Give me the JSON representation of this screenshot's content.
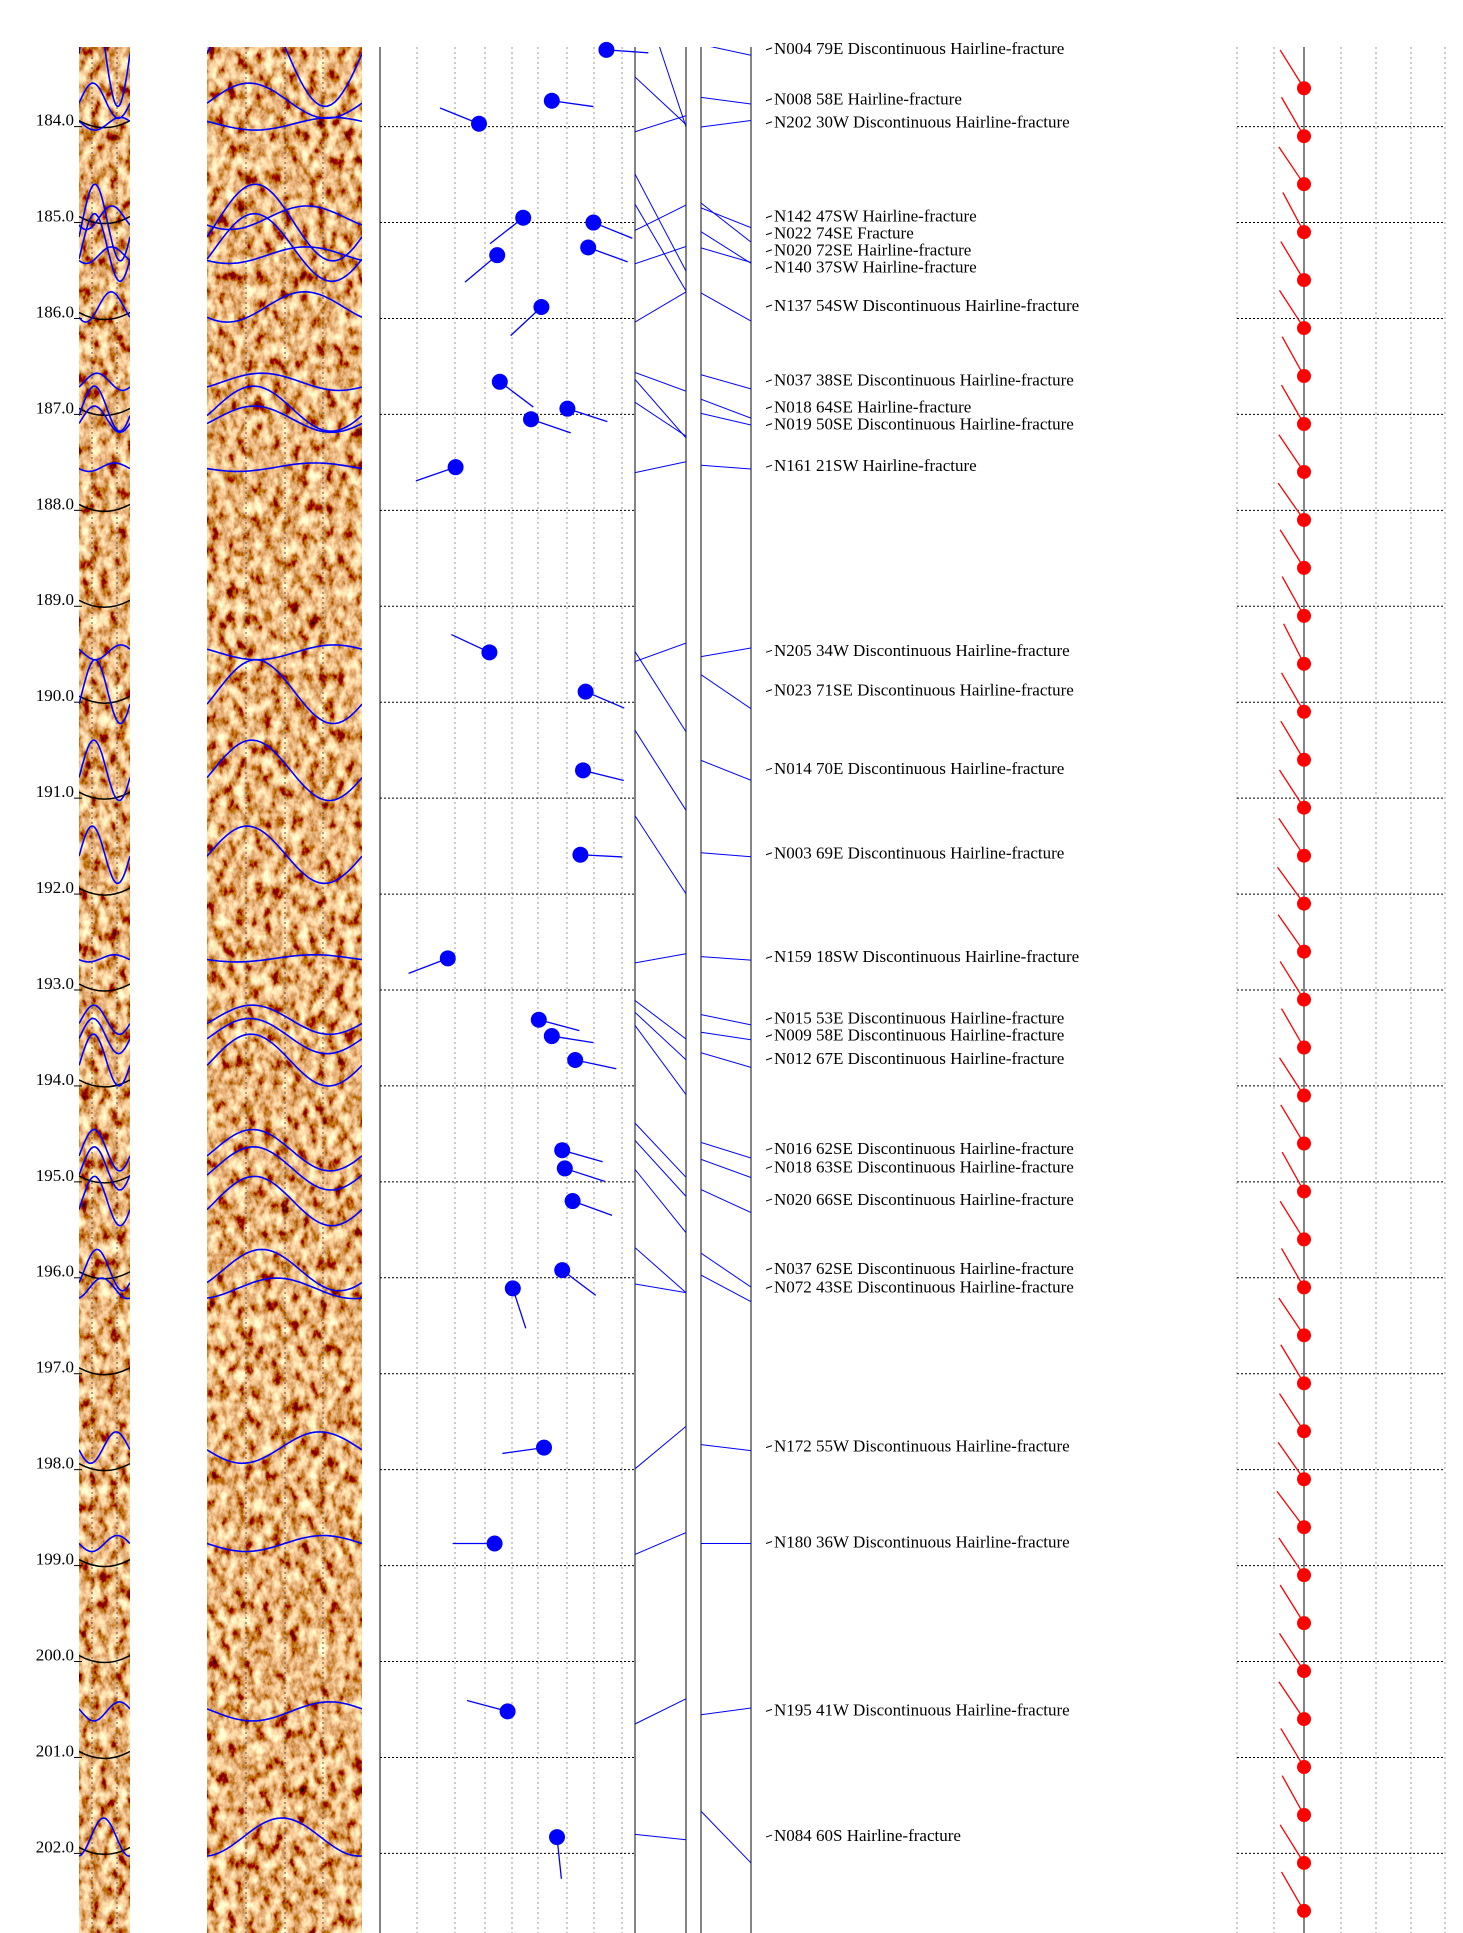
{
  "chart_data": {
    "type": "well-log",
    "depth_axis": {
      "ylim": [
        183.17,
        202.83
      ],
      "yticks": [
        {
          "value": 184,
          "label": "184.0"
        },
        {
          "value": 185,
          "label": "185.0"
        },
        {
          "value": 186,
          "label": "186.0"
        },
        {
          "value": 187,
          "label": "187.0"
        },
        {
          "value": 188,
          "label": "188.0"
        },
        {
          "value": 189,
          "label": "189.0"
        },
        {
          "value": 190,
          "label": "190.0"
        },
        {
          "value": 191,
          "label": "191.0"
        },
        {
          "value": 192,
          "label": "192.0"
        },
        {
          "value": 193,
          "label": "193.0"
        },
        {
          "value": 194,
          "label": "194.0"
        },
        {
          "value": 195,
          "label": "195.0"
        },
        {
          "value": 196,
          "label": "196.0"
        },
        {
          "value": 197,
          "label": "197.0"
        },
        {
          "value": 198,
          "label": "198.0"
        },
        {
          "value": 199,
          "label": "199.0"
        },
        {
          "value": 200,
          "label": "200.0"
        },
        {
          "value": 201,
          "label": "201.0"
        },
        {
          "value": 202,
          "label": "202.0"
        }
      ]
    },
    "dip_axis": {
      "xlim": [
        0,
        90
      ]
    },
    "fracture_color": "#0000ff",
    "fractures": [
      {
        "depth": 183.2,
        "strike": 4,
        "dip": 79,
        "dip_direction": "E",
        "label": "N004 79E Discontinuous Hairline-fracture"
      },
      {
        "depth": 183.73,
        "strike": 8,
        "dip": 58,
        "dip_direction": "E",
        "label": "N008 58E Hairline-fracture"
      },
      {
        "depth": 183.97,
        "strike": 202,
        "dip": 30,
        "dip_direction": "W",
        "label": "N202 30W Discontinuous Hairline-fracture"
      },
      {
        "depth": 184.95,
        "strike": 142,
        "dip": 47,
        "dip_direction": "SW",
        "label": "N142 47SW Hairline-fracture"
      },
      {
        "depth": 185.0,
        "strike": 22,
        "dip": 74,
        "dip_direction": "SE",
        "label": "N022 74SE Fracture"
      },
      {
        "depth": 185.26,
        "strike": 20,
        "dip": 72,
        "dip_direction": "SE",
        "label": "N020 72SE Hairline-fracture"
      },
      {
        "depth": 185.34,
        "strike": 140,
        "dip": 37,
        "dip_direction": "SW",
        "label": "N140 37SW Hairline-fracture"
      },
      {
        "depth": 185.88,
        "strike": 137,
        "dip": 54,
        "dip_direction": "SW",
        "label": "N137 54SW Discontinuous Hairline-fracture"
      },
      {
        "depth": 186.66,
        "strike": 37,
        "dip": 38,
        "dip_direction": "SE",
        "label": "N037 38SE Discontinuous Hairline-fracture"
      },
      {
        "depth": 186.94,
        "strike": 18,
        "dip": 64,
        "dip_direction": "SE",
        "label": "N018 64SE Hairline-fracture"
      },
      {
        "depth": 187.05,
        "strike": 19,
        "dip": 50,
        "dip_direction": "SE",
        "label": "N019 50SE Discontinuous Hairline-fracture"
      },
      {
        "depth": 187.55,
        "strike": 161,
        "dip": 21,
        "dip_direction": "SW",
        "label": "N161 21SW Hairline-fracture"
      },
      {
        "depth": 189.48,
        "strike": 205,
        "dip": 34,
        "dip_direction": "W",
        "label": "N205 34W Discontinuous Hairline-fracture"
      },
      {
        "depth": 189.89,
        "strike": 23,
        "dip": 71,
        "dip_direction": "SE",
        "label": "N023 71SE Discontinuous Hairline-fracture"
      },
      {
        "depth": 190.71,
        "strike": 14,
        "dip": 70,
        "dip_direction": "E",
        "label": "N014 70E Discontinuous Hairline-fracture"
      },
      {
        "depth": 191.59,
        "strike": 3,
        "dip": 69,
        "dip_direction": "E",
        "label": "N003 69E Discontinuous Hairline-fracture"
      },
      {
        "depth": 192.67,
        "strike": 159,
        "dip": 18,
        "dip_direction": "SW",
        "label": "N159 18SW Discontinuous Hairline-fracture"
      },
      {
        "depth": 193.31,
        "strike": 15,
        "dip": 53,
        "dip_direction": "E",
        "label": "N015 53E Discontinuous Hairline-fracture"
      },
      {
        "depth": 193.48,
        "strike": 9,
        "dip": 58,
        "dip_direction": "E",
        "label": "N009 58E Discontinuous Hairline-fracture"
      },
      {
        "depth": 193.73,
        "strike": 12,
        "dip": 67,
        "dip_direction": "E",
        "label": "N012 67E Discontinuous Hairline-fracture"
      },
      {
        "depth": 194.67,
        "strike": 16,
        "dip": 62,
        "dip_direction": "SE",
        "label": "N016 62SE Discontinuous Hairline-fracture"
      },
      {
        "depth": 194.86,
        "strike": 18,
        "dip": 63,
        "dip_direction": "SE",
        "label": "N018 63SE Discontinuous Hairline-fracture"
      },
      {
        "depth": 195.2,
        "strike": 20,
        "dip": 66,
        "dip_direction": "SE",
        "label": "N020 66SE Discontinuous Hairline-fracture"
      },
      {
        "depth": 195.92,
        "strike": 37,
        "dip": 62,
        "dip_direction": "SE",
        "label": "N037 62SE Discontinuous Hairline-fracture"
      },
      {
        "depth": 196.11,
        "strike": 72,
        "dip": 43,
        "dip_direction": "SE",
        "label": "N072 43SE Discontinuous Hairline-fracture"
      },
      {
        "depth": 197.77,
        "strike": 172,
        "dip": 55,
        "dip_direction": "W",
        "label": "N172 55W Discontinuous Hairline-fracture"
      },
      {
        "depth": 198.77,
        "strike": 180,
        "dip": 36,
        "dip_direction": "W",
        "label": "N180 36W Discontinuous Hairline-fracture"
      },
      {
        "depth": 200.52,
        "strike": 195,
        "dip": 41,
        "dip_direction": "W",
        "label": "N195 41W Discontinuous Hairline-fracture"
      },
      {
        "depth": 201.83,
        "strike": 84,
        "dip": 60,
        "dip_direction": "S",
        "label": "N084 60S Hairline-fracture"
      }
    ],
    "orientation": {
      "color": "#ff0000",
      "depths": [
        183.6,
        184.1,
        184.6,
        185.1,
        185.6,
        186.1,
        186.6,
        187.1,
        187.6,
        188.1,
        188.6,
        189.1,
        189.6,
        190.1,
        190.6,
        191.1,
        191.6,
        192.1,
        192.6,
        193.1,
        193.6,
        194.1,
        194.6,
        195.1,
        195.6,
        196.1,
        196.6,
        197.1,
        197.6,
        198.1,
        198.6,
        199.1,
        199.6,
        200.1,
        200.6,
        201.1,
        201.6,
        202.1,
        202.6
      ],
      "azimuths": [
        328,
        330,
        326,
        332,
        329,
        327,
        331,
        330,
        326,
        325,
        328,
        331,
        333,
        330,
        329,
        327,
        326,
        324,
        325,
        328,
        330,
        327,
        329,
        331,
        328,
        330,
        326,
        329,
        327,
        325,
        323,
        326,
        328,
        327,
        326,
        329,
        331,
        328,
        330
      ]
    }
  }
}
